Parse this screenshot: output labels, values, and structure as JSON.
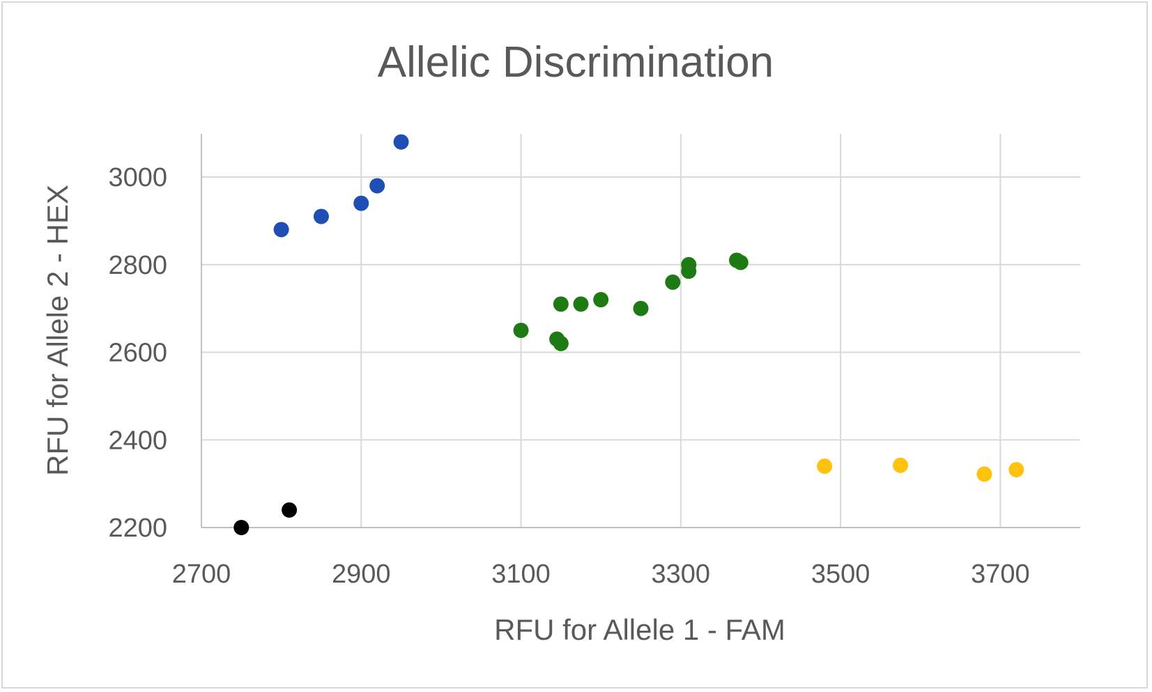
{
  "chart_data": {
    "type": "scatter",
    "title": "Allelic Discrimination",
    "xlabel": "RFU for Allele 1 - FAM",
    "ylabel": "RFU for Allele 2 - HEX",
    "xlim": [
      2700,
      3800
    ],
    "ylim": [
      2200,
      3100
    ],
    "x_ticks": [
      2700,
      2900,
      3100,
      3300,
      3500,
      3700
    ],
    "y_ticks": [
      2200,
      2400,
      2600,
      2800,
      3000
    ],
    "grid": true,
    "legend": "none",
    "series": [
      {
        "color": "#1f4fb4",
        "points": [
          {
            "x": 2800,
            "y": 2880
          },
          {
            "x": 2850,
            "y": 2910
          },
          {
            "x": 2900,
            "y": 2940
          },
          {
            "x": 2920,
            "y": 2980
          },
          {
            "x": 2950,
            "y": 3080
          }
        ]
      },
      {
        "color": "#1e7a12",
        "points": [
          {
            "x": 3100,
            "y": 2650
          },
          {
            "x": 3145,
            "y": 2630
          },
          {
            "x": 3150,
            "y": 2620
          },
          {
            "x": 3150,
            "y": 2710
          },
          {
            "x": 3175,
            "y": 2710
          },
          {
            "x": 3200,
            "y": 2720
          },
          {
            "x": 3250,
            "y": 2700
          },
          {
            "x": 3290,
            "y": 2760
          },
          {
            "x": 3310,
            "y": 2800
          },
          {
            "x": 3310,
            "y": 2785
          },
          {
            "x": 3370,
            "y": 2810
          },
          {
            "x": 3375,
            "y": 2805
          }
        ]
      },
      {
        "color": "#ffc20e",
        "points": [
          {
            "x": 3480,
            "y": 2340
          },
          {
            "x": 3575,
            "y": 2342
          },
          {
            "x": 3680,
            "y": 2322
          },
          {
            "x": 3720,
            "y": 2332
          }
        ]
      },
      {
        "color": "#000000",
        "points": [
          {
            "x": 2750,
            "y": 2200
          },
          {
            "x": 2810,
            "y": 2240
          }
        ]
      }
    ]
  }
}
